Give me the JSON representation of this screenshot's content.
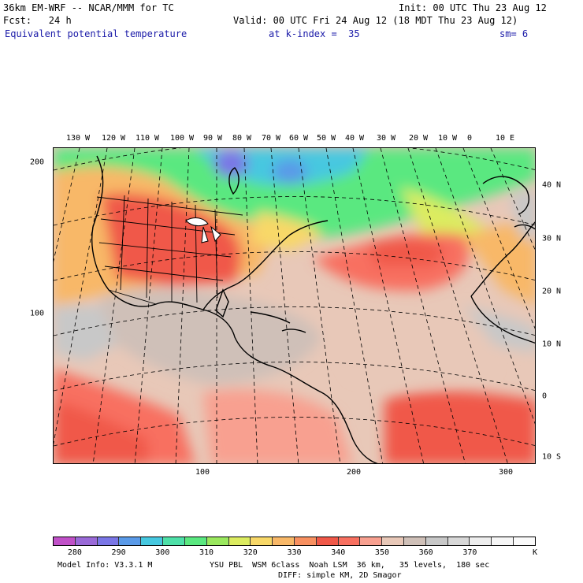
{
  "header": {
    "title": "36km EM-WRF -- NCAR/MMM for TC",
    "init": "Init: 00 UTC Thu 23 Aug 12",
    "forecast": "Fcst:   24 h",
    "valid": "Valid: 00 UTC Fri 24 Aug 12 (18 MDT Thu 23 Aug 12)",
    "field": "Equivalent potential temperature",
    "level": "at k-index =  35",
    "smoothing": "sm= 6"
  },
  "axes": {
    "lon_labels": [
      "130 W",
      "120 W",
      "110 W",
      "100 W",
      "90 W",
      "80 W",
      "70 W",
      "60 W",
      "50 W",
      "40 W",
      "30 W",
      "20 W",
      "10 W",
      "0",
      "10 E"
    ],
    "lat_labels": [
      "40 N",
      "30 N",
      "20 N",
      "10 N",
      "0",
      "10 S"
    ],
    "y_grid_labels": [
      "200",
      "100"
    ],
    "x_grid_labels": [
      "100",
      "200",
      "300"
    ]
  },
  "colorbar": {
    "colors": [
      "#c050c8",
      "#9a6ad8",
      "#7a76e6",
      "#5a9ae8",
      "#46c8e0",
      "#4ee0a8",
      "#5ae880",
      "#9ae85e",
      "#dcec60",
      "#f8d868",
      "#f8b868",
      "#f89060",
      "#f05848",
      "#f87060",
      "#f8a090",
      "#e8c8b8",
      "#cfc0b8",
      "#c8c8c8",
      "#d8d8d8",
      "#eeeeee",
      "#f6f6f6",
      "#fafafa"
    ],
    "labels": [
      "280",
      "290",
      "300",
      "310",
      "320",
      "330",
      "340",
      "350",
      "360",
      "370"
    ],
    "unit": "K"
  },
  "footer": {
    "model_info": "Model Info: V3.3.1 M",
    "physics": "YSU PBL  WSM 6class  Noah LSM  36 km,   35 levels,  180 sec",
    "diffusion": "DIFF: simple KM, 2D Smagor"
  }
}
